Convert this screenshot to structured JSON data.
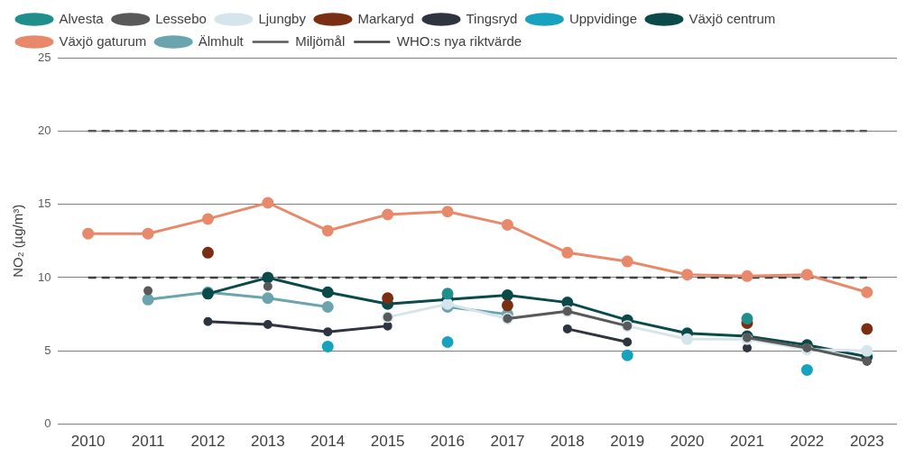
{
  "chart_data": {
    "type": "line",
    "y_label": "NO₂ (µg/m³)",
    "categories": [
      "2010",
      "2011",
      "2012",
      "2013",
      "2014",
      "2015",
      "2016",
      "2017",
      "2018",
      "2019",
      "2020",
      "2021",
      "2022",
      "2023"
    ],
    "ylim": [
      0,
      25
    ],
    "yticks": [
      0,
      5,
      10,
      15,
      20,
      25
    ],
    "grid": true,
    "legend": "top",
    "series": [
      {
        "name": "Alvesta",
        "color": "#1f8f8c",
        "marker": "circle",
        "line_style": "solid",
        "values": [
          null,
          null,
          null,
          null,
          null,
          null,
          8.9,
          null,
          null,
          null,
          null,
          7.2,
          null,
          null
        ]
      },
      {
        "name": "Lessebo",
        "color": "#595959",
        "marker": "circle",
        "line_style": "solid",
        "values": [
          null,
          9.1,
          null,
          9.4,
          null,
          7.3,
          null,
          7.2,
          7.7,
          6.7,
          null,
          5.9,
          5.2,
          4.3
        ]
      },
      {
        "name": "Ljungby",
        "color": "#d6e4ec",
        "marker": "circle",
        "line_style": "solid",
        "values": [
          null,
          null,
          null,
          null,
          null,
          7.3,
          8.2,
          7.2,
          7.7,
          6.7,
          5.8,
          5.8,
          5.1,
          5.0
        ]
      },
      {
        "name": "Markaryd",
        "color": "#7a2e12",
        "marker": "circle",
        "line_style": "solid",
        "values": [
          null,
          null,
          11.7,
          null,
          null,
          8.6,
          null,
          8.1,
          null,
          null,
          null,
          6.9,
          null,
          6.5
        ]
      },
      {
        "name": "Tingsryd",
        "color": "#2e3440",
        "marker": "circle",
        "line_style": "solid",
        "values": [
          null,
          null,
          7.0,
          6.8,
          6.3,
          6.7,
          null,
          null,
          6.5,
          5.6,
          null,
          5.2,
          null,
          4.3
        ]
      },
      {
        "name": "Uppvidinge",
        "color": "#17a2bf",
        "marker": "circle",
        "line_style": "solid",
        "values": [
          null,
          null,
          null,
          null,
          5.3,
          null,
          5.6,
          null,
          null,
          4.7,
          null,
          null,
          3.7,
          null
        ]
      },
      {
        "name": "Växjö centrum",
        "color": "#0b4a4a",
        "marker": "circle",
        "line_style": "solid",
        "values": [
          null,
          null,
          8.9,
          10.0,
          9.0,
          8.2,
          8.5,
          8.8,
          8.3,
          7.1,
          6.2,
          6.0,
          5.4,
          4.6
        ]
      },
      {
        "name": "Växjö gaturum",
        "color": "#e8896b",
        "marker": "circle",
        "line_style": "solid",
        "values": [
          13.0,
          13.0,
          14.0,
          15.1,
          13.2,
          14.3,
          14.5,
          13.6,
          11.7,
          11.1,
          10.2,
          10.1,
          10.2,
          9.0
        ]
      },
      {
        "name": "Älmhult",
        "color": "#6aa4ae",
        "marker": "circle",
        "line_style": "solid",
        "values": [
          null,
          8.5,
          9.0,
          8.6,
          8.0,
          null,
          8.0,
          7.5,
          null,
          null,
          null,
          null,
          null,
          null
        ]
      },
      {
        "name": "Miljömål",
        "color": "#595959",
        "marker": "none",
        "line_style": "dashed",
        "values": [
          20,
          20,
          20,
          20,
          20,
          20,
          20,
          20,
          20,
          20,
          20,
          20,
          20,
          20
        ]
      },
      {
        "name": "WHO:s nya riktvärde",
        "color": "#404040",
        "marker": "none",
        "line_style": "dashed",
        "values": [
          10,
          10,
          10,
          10,
          10,
          10,
          10,
          10,
          10,
          10,
          10,
          10,
          10,
          10
        ]
      }
    ]
  }
}
